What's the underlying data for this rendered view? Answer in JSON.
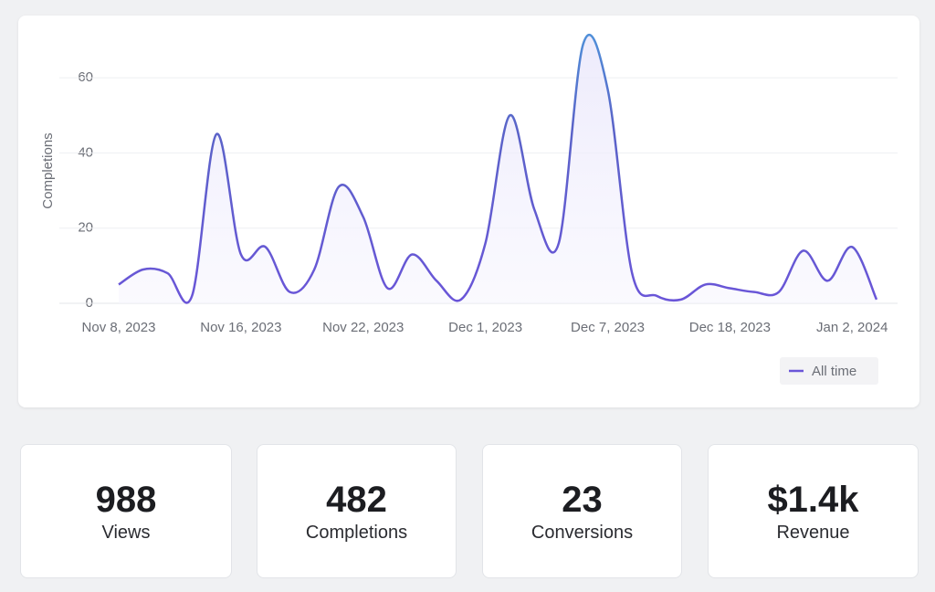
{
  "chart_data": {
    "type": "line",
    "y_label": "Completions",
    "categories": [
      "Nov 8, 2023",
      null,
      null,
      null,
      null,
      "Nov 16, 2023",
      null,
      null,
      null,
      null,
      "Nov 22, 2023",
      null,
      null,
      null,
      null,
      "Dec 1, 2023",
      null,
      null,
      null,
      null,
      "Dec 7, 2023",
      null,
      null,
      null,
      null,
      "Dec 18, 2023",
      null,
      null,
      null,
      null,
      "Jan 2, 2024",
      null
    ],
    "series": [
      {
        "name": "All time",
        "color": "#6a55d8",
        "values": [
          5,
          9,
          8,
          2,
          45,
          13,
          15,
          3,
          9,
          31,
          23,
          4,
          13,
          6,
          1,
          16,
          50,
          25,
          16,
          69,
          57,
          8,
          2,
          1,
          5,
          4,
          3,
          3,
          14,
          6,
          15,
          1
        ]
      }
    ],
    "ylim": [
      0,
      70
    ],
    "yticks": [
      0,
      20,
      40,
      60
    ],
    "grid": true,
    "legend": "bottom-right"
  },
  "stats": [
    {
      "value": "988",
      "label": "Views"
    },
    {
      "value": "482",
      "label": "Completions"
    },
    {
      "value": "23",
      "label": "Conversions"
    },
    {
      "value": "$1.4k",
      "label": "Revenue"
    }
  ]
}
